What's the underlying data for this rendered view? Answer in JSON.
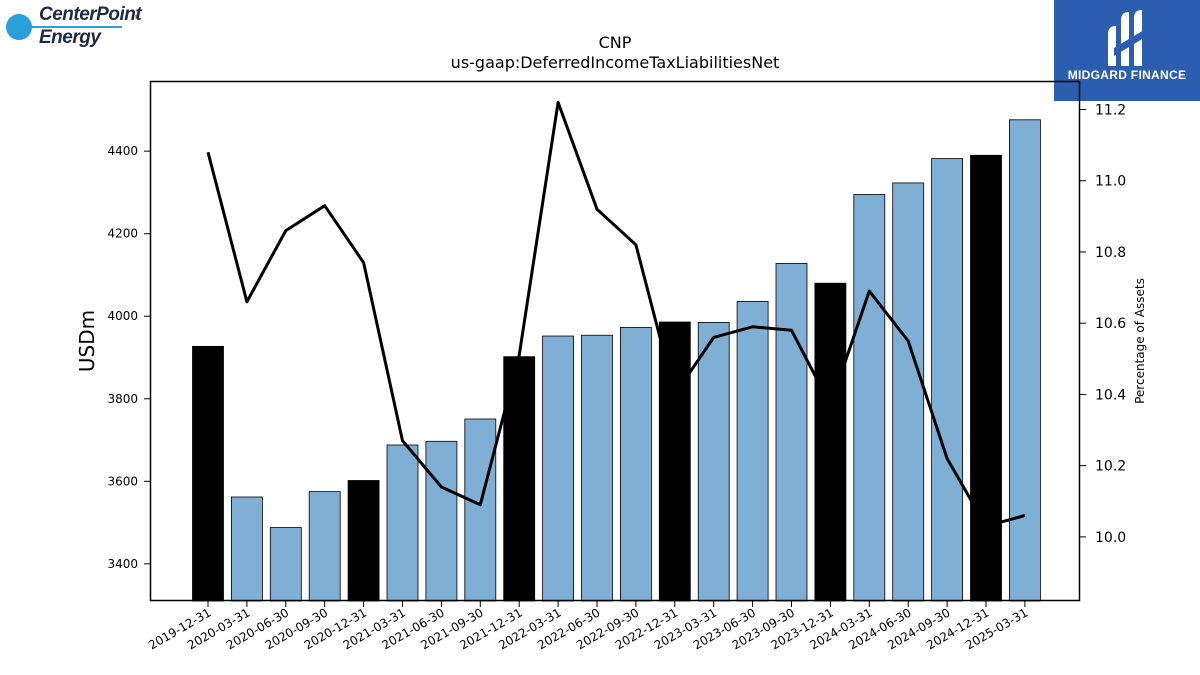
{
  "logos": {
    "left": {
      "line1": "CenterPoint",
      "line2": "Energy",
      "reg": "®"
    },
    "right": {
      "text": "MIDGARD FINANCE"
    }
  },
  "chart_data": {
    "type": "bar",
    "title": "CNP",
    "subtitle": "us-gaap:DeferredIncomeTaxLiabilitiesNet",
    "ylabel": "USDm",
    "y2label": "Percentage of Assets",
    "categories": [
      "2019-12-31",
      "2020-03-31",
      "2020-06-30",
      "2020-09-30",
      "2020-12-31",
      "2021-03-31",
      "2021-06-30",
      "2021-09-30",
      "2021-12-31",
      "2022-03-31",
      "2022-06-30",
      "2022-09-30",
      "2022-12-31",
      "2023-03-31",
      "2023-06-30",
      "2023-09-30",
      "2023-12-31",
      "2024-03-31",
      "2024-06-30",
      "2024-09-30",
      "2024-12-31",
      "2025-03-31"
    ],
    "series": [
      {
        "type": "bar",
        "axis": "left",
        "values": [
          3927,
          3562,
          3488,
          3575,
          3602,
          3688,
          3697,
          3751,
          3902,
          3952,
          3954,
          3973,
          3986,
          3985,
          4036,
          4128,
          4080,
          4295,
          4323,
          4382,
          4390,
          4476
        ],
        "colors": [
          "#000000",
          "#7fafd4",
          "#7fafd4",
          "#7fafd4",
          "#000000",
          "#7fafd4",
          "#7fafd4",
          "#7fafd4",
          "#000000",
          "#7fafd4",
          "#7fafd4",
          "#7fafd4",
          "#000000",
          "#7fafd4",
          "#7fafd4",
          "#7fafd4",
          "#000000",
          "#7fafd4",
          "#7fafd4",
          "#7fafd4",
          "#000000",
          "#7fafd4"
        ]
      },
      {
        "type": "line",
        "axis": "right",
        "color": "#000000",
        "values": [
          11.08,
          10.66,
          10.86,
          10.93,
          10.77,
          10.27,
          10.14,
          10.09,
          10.51,
          11.22,
          10.92,
          10.82,
          10.4,
          10.56,
          10.59,
          10.58,
          10.37,
          10.69,
          10.55,
          10.22,
          10.03,
          10.06
        ]
      }
    ],
    "ylim": [
      3310,
      4570
    ],
    "y_ticks": [
      3400,
      3600,
      3800,
      4000,
      4200,
      4400
    ],
    "y2lim": [
      9.82,
      11.28
    ],
    "y2_ticks": [
      "10.0",
      "10.2",
      "10.4",
      "10.6",
      "10.8",
      "11.0",
      "11.2"
    ],
    "grid": false,
    "legend": "none"
  }
}
